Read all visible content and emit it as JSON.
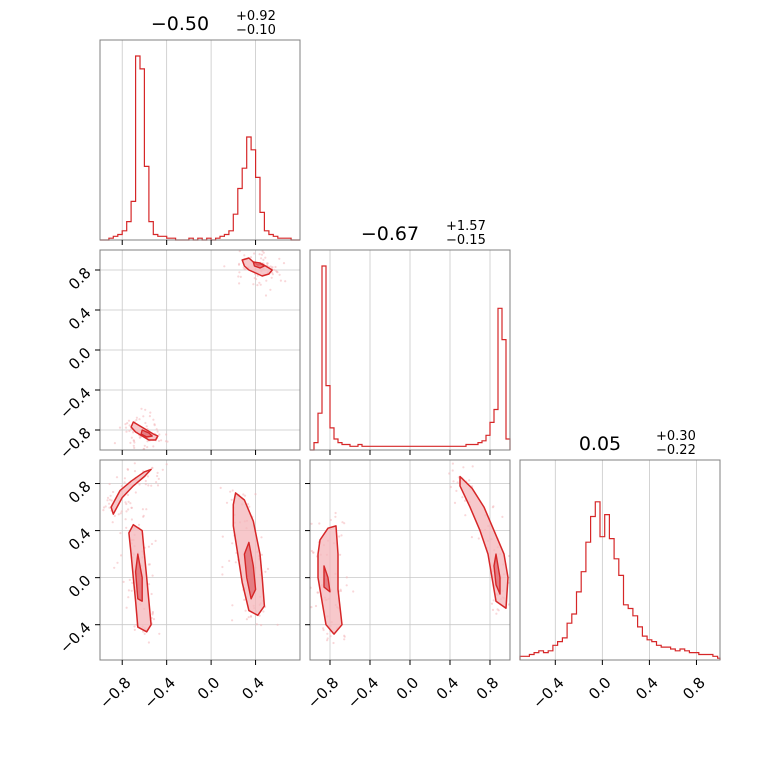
{
  "chart_data": {
    "type": "corner",
    "color": "#d62728",
    "fill_color": "#f4b6b9",
    "grid": true,
    "parameters": [
      {
        "range": [
          -1.0,
          0.8
        ],
        "ticks": [
          -0.8,
          -0.4,
          0.0,
          0.4
        ],
        "tick_labels": [
          "−0.8",
          "−0.4",
          "0.0",
          "0.4"
        ],
        "title": {
          "median": "−0.50",
          "plus": "+0.92",
          "minus": "−0.10"
        },
        "histogram": {
          "edges_start": -1.0,
          "bin_width": 0.04,
          "values": [
            0,
            0,
            0.01,
            0.02,
            0.03,
            0.05,
            0.1,
            0.21,
            1.0,
            0.93,
            0.4,
            0.1,
            0.03,
            0.02,
            0.02,
            0.01,
            0.01,
            0,
            0,
            0,
            0.01,
            0,
            0.01,
            0,
            0.01,
            0,
            0.01,
            0.02,
            0.03,
            0.05,
            0.14,
            0.28,
            0.39,
            0.56,
            0.49,
            0.34,
            0.15,
            0.05,
            0.03,
            0.02,
            0.01,
            0.01,
            0.01,
            0,
            0
          ]
        }
      },
      {
        "range": [
          -1.0,
          1.0
        ],
        "ticks": [
          -0.8,
          -0.4,
          0.0,
          0.4,
          0.8
        ],
        "tick_labels": [
          "−0.8",
          "−0.4",
          "0.0",
          "0.4",
          "0.8"
        ],
        "title": {
          "median": "−0.67",
          "plus": "+1.57",
          "minus": "−0.15"
        },
        "histogram": {
          "edges_start": -1.0,
          "bin_width": 0.04,
          "values": [
            0,
            0.04,
            0.2,
            1.0,
            0.35,
            0.12,
            0.06,
            0.04,
            0.03,
            0.03,
            0.02,
            0.02,
            0.03,
            0.02,
            0.02,
            0.02,
            0.02,
            0.02,
            0.02,
            0.02,
            0.02,
            0.02,
            0.02,
            0.02,
            0.02,
            0.02,
            0.02,
            0.02,
            0.02,
            0.02,
            0.02,
            0.02,
            0.02,
            0.02,
            0.02,
            0.02,
            0.02,
            0.02,
            0.02,
            0.03,
            0.03,
            0.03,
            0.04,
            0.05,
            0.08,
            0.15,
            0.22,
            0.77,
            0.6,
            0.06
          ]
        }
      },
      {
        "range": [
          -0.7,
          1.0
        ],
        "ticks": [
          -0.4,
          0.0,
          0.4,
          0.8
        ],
        "tick_labels": [
          "−0.4",
          "0.0",
          "0.4",
          "0.8"
        ],
        "title": {
          "median": "0.05",
          "plus": "+0.30",
          "minus": "−0.22"
        },
        "histogram": {
          "edges_start": -0.7,
          "bin_width": 0.04,
          "values": [
            0.02,
            0.02,
            0.03,
            0.04,
            0.05,
            0.04,
            0.05,
            0.08,
            0.1,
            0.12,
            0.2,
            0.25,
            0.37,
            0.48,
            0.64,
            0.78,
            0.86,
            0.67,
            0.79,
            0.66,
            0.55,
            0.46,
            0.3,
            0.28,
            0.24,
            0.18,
            0.13,
            0.11,
            0.1,
            0.08,
            0.07,
            0.07,
            0.06,
            0.05,
            0.06,
            0.05,
            0.04,
            0.04,
            0.03,
            0.03,
            0.03,
            0.02,
            0.01
          ]
        }
      }
    ],
    "pair_clusters": [
      {
        "row": 1,
        "col": 0,
        "clusters": [
          {
            "points": [
              [
                0.28,
                0.9
              ],
              [
                0.34,
                0.92
              ],
              [
                0.38,
                0.88
              ],
              [
                0.42,
                0.85
              ],
              [
                0.46,
                0.86
              ],
              [
                0.52,
                0.82
              ],
              [
                0.55,
                0.8
              ],
              [
                0.52,
                0.76
              ],
              [
                0.46,
                0.74
              ],
              [
                0.4,
                0.77
              ],
              [
                0.34,
                0.8
              ],
              [
                0.3,
                0.84
              ]
            ],
            "core": [
              [
                0.38,
                0.88
              ],
              [
                0.44,
                0.87
              ],
              [
                0.48,
                0.84
              ],
              [
                0.44,
                0.82
              ],
              [
                0.39,
                0.84
              ]
            ]
          },
          {
            "points": [
              [
                -0.7,
                -0.72
              ],
              [
                -0.64,
                -0.76
              ],
              [
                -0.58,
                -0.8
              ],
              [
                -0.52,
                -0.84
              ],
              [
                -0.48,
                -0.86
              ],
              [
                -0.5,
                -0.9
              ],
              [
                -0.56,
                -0.9
              ],
              [
                -0.62,
                -0.86
              ],
              [
                -0.68,
                -0.82
              ],
              [
                -0.72,
                -0.77
              ]
            ],
            "core": [
              [
                -0.62,
                -0.8
              ],
              [
                -0.56,
                -0.83
              ],
              [
                -0.53,
                -0.86
              ],
              [
                -0.58,
                -0.87
              ],
              [
                -0.63,
                -0.84
              ]
            ]
          }
        ]
      },
      {
        "row": 2,
        "col": 0,
        "clusters": [
          {
            "points": [
              [
                -0.7,
                0.45
              ],
              [
                -0.62,
                0.4
              ],
              [
                -0.6,
                0.2
              ],
              [
                -0.58,
                0.0
              ],
              [
                -0.56,
                -0.2
              ],
              [
                -0.54,
                -0.4
              ],
              [
                -0.58,
                -0.46
              ],
              [
                -0.66,
                -0.42
              ],
              [
                -0.68,
                -0.2
              ],
              [
                -0.7,
                0.0
              ],
              [
                -0.72,
                0.2
              ],
              [
                -0.74,
                0.38
              ]
            ],
            "core": [
              [
                -0.66,
                0.2
              ],
              [
                -0.62,
                0.0
              ],
              [
                -0.62,
                -0.2
              ],
              [
                -0.66,
                -0.18
              ],
              [
                -0.68,
                0.05
              ]
            ]
          },
          {
            "points": [
              [
                0.22,
                0.72
              ],
              [
                0.3,
                0.66
              ],
              [
                0.38,
                0.48
              ],
              [
                0.44,
                0.2
              ],
              [
                0.46,
                0.0
              ],
              [
                0.48,
                -0.24
              ],
              [
                0.42,
                -0.32
              ],
              [
                0.34,
                -0.28
              ],
              [
                0.28,
                -0.04
              ],
              [
                0.24,
                0.2
              ],
              [
                0.2,
                0.44
              ],
              [
                0.2,
                0.62
              ]
            ],
            "core": [
              [
                0.34,
                0.3
              ],
              [
                0.38,
                0.1
              ],
              [
                0.4,
                -0.1
              ],
              [
                0.36,
                -0.18
              ],
              [
                0.32,
                0.0
              ],
              [
                0.3,
                0.2
              ]
            ]
          },
          {
            "points": [
              [
                -0.9,
                0.6
              ],
              [
                -0.82,
                0.74
              ],
              [
                -0.72,
                0.82
              ],
              [
                -0.6,
                0.9
              ],
              [
                -0.54,
                0.92
              ],
              [
                -0.6,
                0.86
              ],
              [
                -0.7,
                0.78
              ],
              [
                -0.8,
                0.68
              ],
              [
                -0.88,
                0.54
              ]
            ],
            "core": []
          }
        ]
      },
      {
        "row": 2,
        "col": 1,
        "clusters": [
          {
            "points": [
              [
                -0.9,
                0.32
              ],
              [
                -0.82,
                0.42
              ],
              [
                -0.74,
                0.44
              ],
              [
                -0.72,
                0.2
              ],
              [
                -0.72,
                -0.1
              ],
              [
                -0.68,
                -0.4
              ],
              [
                -0.76,
                -0.48
              ],
              [
                -0.84,
                -0.4
              ],
              [
                -0.88,
                -0.2
              ],
              [
                -0.92,
                0.0
              ],
              [
                -0.92,
                0.2
              ]
            ],
            "core": [
              [
                -0.86,
                0.1
              ],
              [
                -0.82,
                0.0
              ],
              [
                -0.8,
                -0.12
              ],
              [
                -0.86,
                -0.08
              ]
            ]
          },
          {
            "points": [
              [
                0.5,
                0.86
              ],
              [
                0.62,
                0.76
              ],
              [
                0.74,
                0.6
              ],
              [
                0.84,
                0.4
              ],
              [
                0.94,
                0.2
              ],
              [
                0.98,
                0.0
              ],
              [
                0.96,
                -0.26
              ],
              [
                0.86,
                -0.2
              ],
              [
                0.82,
                0.0
              ],
              [
                0.78,
                0.2
              ],
              [
                0.7,
                0.4
              ],
              [
                0.6,
                0.6
              ],
              [
                0.5,
                0.78
              ]
            ],
            "core": [
              [
                0.86,
                0.2
              ],
              [
                0.9,
                0.0
              ],
              [
                0.9,
                -0.14
              ],
              [
                0.86,
                -0.06
              ],
              [
                0.84,
                0.1
              ]
            ]
          }
        ]
      }
    ]
  }
}
